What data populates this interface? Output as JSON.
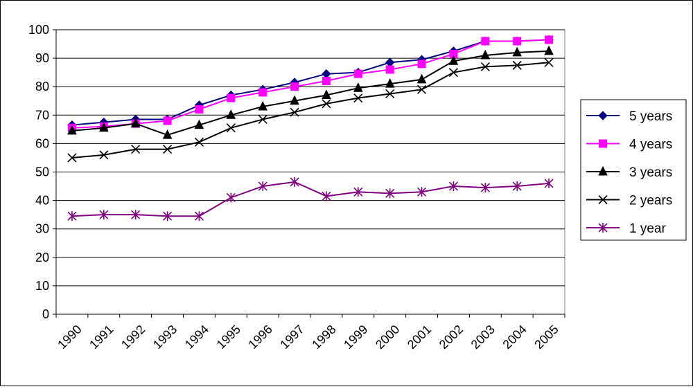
{
  "chart_data": {
    "type": "line",
    "title": "",
    "xlabel": "",
    "ylabel": "",
    "categories": [
      "1990",
      "1991",
      "1992",
      "1993",
      "1994",
      "1995",
      "1996",
      "1997",
      "1998",
      "1999",
      "2000",
      "2001",
      "2002",
      "2003",
      "2004",
      "2005"
    ],
    "ylim": [
      0,
      100
    ],
    "yticks": [
      0,
      10,
      20,
      30,
      40,
      50,
      60,
      70,
      80,
      90,
      100
    ],
    "grid": "horizontal",
    "legend_position": "right",
    "series": [
      {
        "name": "5 years",
        "color": "#000080",
        "marker": "diamond",
        "values": [
          66.5,
          67.5,
          68.5,
          68.5,
          73.5,
          77,
          79,
          81.5,
          84.5,
          85,
          88.5,
          89.5,
          92.5,
          96,
          96,
          96.5
        ]
      },
      {
        "name": "4 years",
        "color": "#FF00FF",
        "marker": "square",
        "values": [
          65.5,
          66,
          67,
          68,
          72,
          76,
          78,
          80,
          82,
          84.5,
          86,
          88,
          91.5,
          96,
          96,
          96.5
        ]
      },
      {
        "name": "3 years",
        "color": "#000000",
        "marker": "triangle",
        "values": [
          64.5,
          65.5,
          67,
          63,
          66.5,
          70,
          73,
          75,
          77,
          79.5,
          81,
          82.5,
          89,
          91,
          92,
          92.5
        ]
      },
      {
        "name": "2 years",
        "color": "#000000",
        "marker": "x",
        "values": [
          55,
          56,
          58,
          58,
          60.5,
          65.5,
          68.5,
          71,
          74,
          76,
          77.5,
          79,
          85,
          87,
          87.5,
          88.5
        ]
      },
      {
        "name": "1 year",
        "color": "#800080",
        "marker": "asterisk",
        "values": [
          34.5,
          35,
          35,
          34.5,
          34.5,
          41,
          45,
          46.5,
          41.5,
          43,
          42.5,
          43,
          45,
          44.5,
          45,
          46
        ]
      }
    ]
  }
}
